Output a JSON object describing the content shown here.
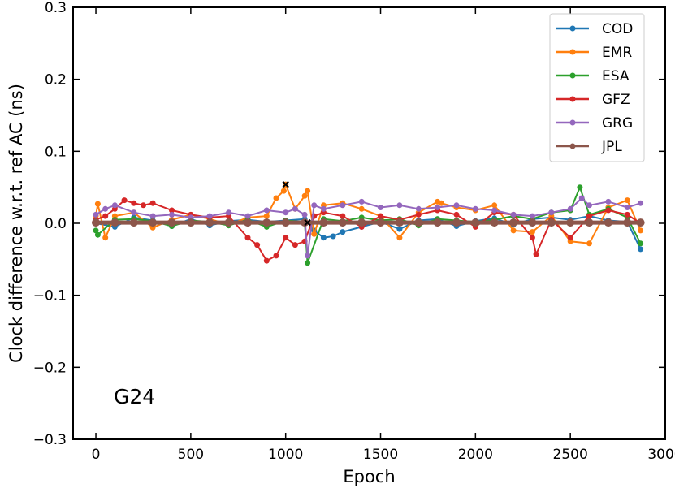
{
  "chart_data": {
    "type": "scatter",
    "title": "",
    "xlabel": "Epoch",
    "ylabel": "Clock difference w.r.t. ref AC (ns)",
    "xlim": [
      -120,
      3000
    ],
    "ylim": [
      -0.3,
      0.3
    ],
    "x_ticks": [
      0,
      500,
      1000,
      1500,
      2000,
      2500,
      3000
    ],
    "y_ticks": [
      -0.3,
      -0.2,
      -0.1,
      0.0,
      0.1,
      0.2,
      0.3
    ],
    "x_tick_labels": [
      "0",
      "500",
      "1000",
      "1500",
      "2000",
      "2500",
      "3000"
    ],
    "y_tick_labels": [
      "−0.3",
      "−0.2",
      "−0.1",
      "0.0",
      "0.1",
      "0.2",
      "0.3"
    ],
    "panel_label": "G24",
    "legend_position": "top-right",
    "grid": false,
    "markers": [
      {
        "x": 1000,
        "y": 0.054,
        "symbol": "x"
      },
      {
        "x": 1115,
        "y": 0.001,
        "symbol": "x"
      }
    ],
    "series": [
      {
        "name": "COD",
        "color": "#1f77b4",
        "x": [
          0,
          100,
          200,
          300,
          400,
          500,
          600,
          700,
          800,
          900,
          1000,
          1100,
          1150,
          1200,
          1250,
          1300,
          1400,
          1500,
          1600,
          1700,
          1800,
          1900,
          2000,
          2100,
          2200,
          2300,
          2400,
          2500,
          2600,
          2700,
          2800,
          2870
        ],
        "y": [
          0.0,
          -0.005,
          0.008,
          0.004,
          -0.004,
          0.006,
          -0.003,
          0.003,
          0.005,
          0.002,
          0.004,
          0.006,
          -0.01,
          -0.02,
          -0.018,
          -0.012,
          -0.005,
          0.002,
          -0.008,
          0.004,
          0.006,
          -0.004,
          0.003,
          0.007,
          -0.002,
          0.006,
          0.008,
          0.005,
          0.01,
          0.004,
          0.002,
          -0.036
        ]
      },
      {
        "name": "EMR",
        "color": "#ff7f0e",
        "x": [
          0,
          10,
          50,
          100,
          200,
          300,
          400,
          500,
          600,
          700,
          800,
          900,
          950,
          990,
          1000,
          1050,
          1100,
          1115,
          1150,
          1200,
          1300,
          1400,
          1500,
          1600,
          1700,
          1800,
          1820,
          1900,
          2000,
          2100,
          2200,
          2300,
          2400,
          2500,
          2600,
          2700,
          2800,
          2870
        ],
        "y": [
          0.01,
          0.027,
          -0.02,
          0.01,
          0.015,
          -0.006,
          0.005,
          0.012,
          0.006,
          -0.002,
          0.008,
          0.01,
          0.035,
          0.045,
          0.054,
          0.02,
          0.038,
          0.045,
          -0.015,
          0.025,
          0.028,
          0.02,
          0.01,
          -0.02,
          0.015,
          0.03,
          0.028,
          0.022,
          0.018,
          0.025,
          -0.01,
          -0.012,
          0.01,
          -0.025,
          -0.028,
          0.022,
          0.032,
          -0.01
        ]
      },
      {
        "name": "ESA",
        "color": "#2ca02c",
        "x": [
          0,
          10,
          100,
          200,
          300,
          400,
          500,
          600,
          700,
          800,
          900,
          1000,
          1100,
          1115,
          1200,
          1300,
          1400,
          1500,
          1600,
          1700,
          1800,
          1900,
          2000,
          2100,
          2200,
          2300,
          2400,
          2500,
          2550,
          2600,
          2700,
          2800,
          2870
        ],
        "y": [
          -0.01,
          -0.016,
          0.005,
          0.006,
          0.003,
          -0.004,
          0.004,
          0.002,
          -0.003,
          0.005,
          -0.005,
          0.004,
          0.002,
          -0.055,
          0.006,
          0.003,
          0.008,
          0.004,
          0.006,
          -0.003,
          0.006,
          0.004,
          0.002,
          0.005,
          0.01,
          0.006,
          0.015,
          0.018,
          0.05,
          0.012,
          0.02,
          0.008,
          -0.028
        ]
      },
      {
        "name": "GFZ",
        "color": "#d62728",
        "x": [
          0,
          50,
          100,
          150,
          200,
          250,
          300,
          400,
          500,
          600,
          700,
          800,
          850,
          900,
          950,
          1000,
          1050,
          1100,
          1150,
          1200,
          1300,
          1400,
          1500,
          1600,
          1700,
          1800,
          1900,
          2000,
          2100,
          2200,
          2300,
          2320,
          2400,
          2500,
          2600,
          2700,
          2800,
          2870
        ],
        "y": [
          0.005,
          0.01,
          0.02,
          0.032,
          0.028,
          0.025,
          0.028,
          0.018,
          0.012,
          0.008,
          0.01,
          -0.02,
          -0.03,
          -0.052,
          -0.045,
          -0.02,
          -0.03,
          -0.025,
          0.01,
          0.015,
          0.01,
          -0.005,
          0.01,
          0.005,
          0.012,
          0.018,
          0.012,
          -0.005,
          0.015,
          0.012,
          -0.02,
          -0.043,
          0.005,
          -0.02,
          0.01,
          0.018,
          0.012,
          0.0
        ]
      },
      {
        "name": "GRG",
        "color": "#9467bd",
        "x": [
          0,
          50,
          100,
          200,
          300,
          400,
          500,
          600,
          700,
          800,
          900,
          1000,
          1050,
          1100,
          1115,
          1150,
          1200,
          1300,
          1400,
          1500,
          1600,
          1700,
          1800,
          1900,
          2000,
          2100,
          2200,
          2300,
          2400,
          2500,
          2560,
          2600,
          2700,
          2800,
          2870
        ],
        "y": [
          0.012,
          0.02,
          0.025,
          0.015,
          0.01,
          0.012,
          0.008,
          0.01,
          0.015,
          0.01,
          0.018,
          0.015,
          0.02,
          0.012,
          -0.045,
          0.025,
          0.02,
          0.025,
          0.03,
          0.022,
          0.025,
          0.02,
          0.022,
          0.025,
          0.02,
          0.018,
          0.012,
          0.01,
          0.015,
          0.02,
          0.035,
          0.025,
          0.03,
          0.022,
          0.028
        ]
      },
      {
        "name": "JPL",
        "color": "#8c564b",
        "x": [
          0,
          100,
          200,
          300,
          400,
          500,
          600,
          700,
          800,
          900,
          1000,
          1100,
          1200,
          1300,
          1400,
          1500,
          1600,
          1700,
          1800,
          1900,
          2000,
          2100,
          2200,
          2300,
          2400,
          2500,
          2600,
          2700,
          2800,
          2870
        ],
        "y": [
          0.001,
          0.001,
          0.001,
          0.001,
          0.001,
          0.001,
          0.001,
          0.001,
          0.001,
          0.001,
          0.001,
          0.001,
          0.001,
          0.001,
          0.001,
          0.001,
          0.001,
          0.001,
          0.001,
          0.001,
          0.001,
          0.001,
          0.001,
          0.001,
          0.001,
          0.001,
          0.001,
          0.001,
          0.001,
          0.001
        ]
      }
    ]
  }
}
